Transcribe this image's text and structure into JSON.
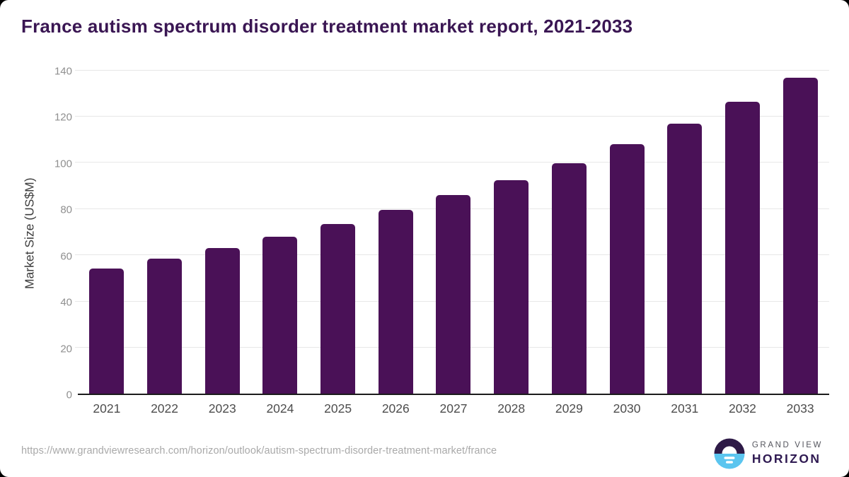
{
  "title": "France autism spectrum disorder treatment market report, 2021-2033",
  "footer": {
    "source_url": "https://www.grandviewresearch.com/horizon/outlook/autism-spectrum-disorder-treatment-market/france",
    "logo": {
      "line1": "GRAND VIEW",
      "line2": "HORIZON"
    }
  },
  "colors": {
    "page_bg": "#000000",
    "card_bg": "#ffffff",
    "title_text": "#3a1653",
    "bar": "#4a1157",
    "axis_line": "#1c1c1c",
    "gridline": "#e7e7e7",
    "y_tick_text": "#8f8f8f",
    "x_label_text": "#4d4d4d",
    "y_axis_title_text": "#3f3f3f",
    "url_text": "#a9a9a9",
    "logo_circle_top": "#2e1a47",
    "logo_circle_bottom": "#5bc5ef",
    "logo_grand_view_text": "#54555d",
    "logo_horizon_text": "#2f1a52"
  },
  "chart_data": {
    "type": "bar",
    "title": "France autism spectrum disorder treatment market report, 2021-2033",
    "categories": [
      "2021",
      "2022",
      "2023",
      "2024",
      "2025",
      "2026",
      "2027",
      "2028",
      "2029",
      "2030",
      "2031",
      "2032",
      "2033"
    ],
    "values": [
      54.2,
      58.4,
      63.0,
      68.0,
      73.5,
      79.4,
      85.8,
      92.4,
      99.6,
      107.9,
      116.7,
      126.2,
      136.5
    ],
    "xlabel": "",
    "ylabel": "Market Size (US$M)",
    "ylim": [
      0,
      140
    ],
    "ytick_step": 20,
    "yticks": [
      0,
      20,
      40,
      60,
      80,
      100,
      120,
      140
    ],
    "grid": "horizontal-only",
    "legend": "none",
    "bar_color": "#4a1157"
  }
}
